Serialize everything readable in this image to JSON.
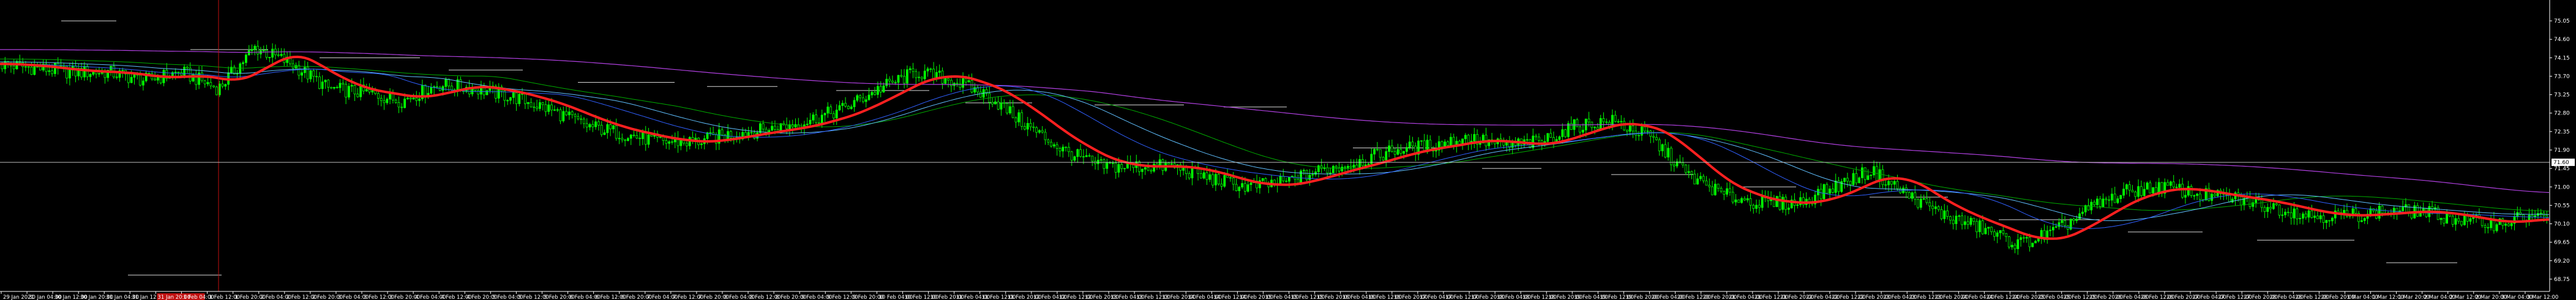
{
  "chart_data": {
    "type": "candlestick",
    "price_axis": {
      "labels": [
        "75.05",
        "74.60",
        "74.15",
        "73.70",
        "73.25",
        "72.80",
        "72.35",
        "71.90",
        "71.45",
        "71.00",
        "70.55",
        "70.10",
        "69.65",
        "69.20",
        "68.75"
      ],
      "current_price_label": "71.60",
      "ylim": [
        68.45,
        75.35
      ]
    },
    "time_axis": {
      "labels": [
        "29 Jan 2021",
        "30 Jan 04:00",
        "30 Jan 12:00",
        "30 Jan 20:00",
        "31 Jan 04:00",
        "31 Jan 12:00",
        "31 Jan 20:00",
        "1 Feb 04:00",
        "1 Feb 12:00",
        "1 Feb 20:00",
        "2 Feb 04:00",
        "2 Feb 12:00",
        "2 Feb 20:00",
        "3 Feb 04:00",
        "3 Feb 12:00",
        "3 Feb 20:00",
        "4 Feb 04:00",
        "4 Feb 12:00",
        "4 Feb 20:00",
        "5 Feb 04:00",
        "5 Feb 12:00",
        "5 Feb 20:00",
        "6 Feb 04:00",
        "6 Feb 12:00",
        "6 Feb 20:00",
        "7 Feb 04:00",
        "7 Feb 12:00",
        "7 Feb 20:00",
        "8 Feb 04:00",
        "8 Feb 12:00",
        "8 Feb 20:00",
        "9 Feb 04:00",
        "9 Feb 12:00",
        "9 Feb 20:00",
        "10 Feb 04:00",
        "10 Feb 12:00",
        "10 Feb 20:00",
        "11 Feb 04:00",
        "11 Feb 12:00",
        "11 Feb 20:00",
        "12 Feb 04:00",
        "12 Feb 12:00",
        "12 Feb 20:00",
        "13 Feb 04:00",
        "13 Feb 12:00",
        "13 Feb 20:00",
        "14 Feb 04:00",
        "14 Feb 12:00",
        "14 Feb 20:00",
        "15 Feb 04:00",
        "15 Feb 12:00",
        "15 Feb 20:00",
        "16 Feb 04:00",
        "16 Feb 12:00",
        "16 Feb 20:00",
        "17 Feb 04:00",
        "17 Feb 12:00",
        "17 Feb 20:00",
        "18 Feb 04:00",
        "18 Feb 12:00",
        "18 Feb 20:00",
        "19 Feb 04:00",
        "19 Feb 12:00",
        "19 Feb 20:00",
        "20 Feb 04:00",
        "20 Feb 12:00",
        "20 Feb 20:00",
        "21 Feb 04:00",
        "21 Feb 12:00",
        "21 Feb 20:00",
        "22 Feb 04:00",
        "22 Feb 12:00",
        "22 Feb 20:00",
        "23 Feb 04:00",
        "23 Feb 12:00",
        "23 Feb 20:00",
        "24 Feb 04:00",
        "24 Feb 12:00",
        "24 Feb 20:00",
        "25 Feb 04:00",
        "25 Feb 12:00",
        "25 Feb 20:00",
        "26 Feb 04:00",
        "26 Feb 12:00",
        "26 Feb 20:00",
        "27 Feb 04:00",
        "27 Feb 12:00",
        "27 Feb 20:00",
        "28 Feb 04:00",
        "28 Feb 12:00",
        "28 Feb 20:00",
        "1 Mar 04:00",
        "1 Mar 12:00",
        "1 Mar 20:00",
        "2 Mar 04:00",
        "2 Mar 12:00",
        "2 Mar 20:00",
        "3 Mar 04:00",
        "3 Mar 12:00"
      ],
      "highlighted_label": "31 Jan 20:00"
    },
    "levels": [
      {
        "price": 75.05,
        "kind": "resistance"
      },
      {
        "price": 74.35,
        "kind": "resistance"
      },
      {
        "price": 74.15,
        "kind": "resistance"
      },
      {
        "price": 73.85,
        "kind": "resistance"
      },
      {
        "price": 73.55,
        "kind": "resistance"
      },
      {
        "price": 73.45,
        "kind": "resistance"
      },
      {
        "price": 73.35,
        "kind": "resistance"
      },
      {
        "price": 73.05,
        "kind": "resistance"
      },
      {
        "price": 73.0,
        "kind": "resistance"
      },
      {
        "price": 72.95,
        "kind": "resistance"
      },
      {
        "price": 71.95,
        "kind": "support"
      },
      {
        "price": 71.45,
        "kind": "support"
      },
      {
        "price": 71.3,
        "kind": "support"
      },
      {
        "price": 71.0,
        "kind": "support"
      },
      {
        "price": 70.75,
        "kind": "support"
      },
      {
        "price": 70.2,
        "kind": "support"
      },
      {
        "price": 69.9,
        "kind": "support"
      },
      {
        "price": 69.7,
        "kind": "support"
      },
      {
        "price": 69.15,
        "kind": "support"
      },
      {
        "price": 68.85,
        "kind": "support"
      }
    ],
    "current_price": 71.6,
    "colors": {
      "background": "#000000",
      "bull": "#00ff00",
      "bear": "#00ff00",
      "ma_fast": "#ff2020",
      "ma_mid": "#3060ff",
      "ma_slow": "#00aa00",
      "ma_long": "#b040e0",
      "ma_alt": "#60c0ff",
      "grid_text": "#ffffff",
      "crosshair": "#c01010",
      "highlight_bg": "#c01010"
    }
  }
}
